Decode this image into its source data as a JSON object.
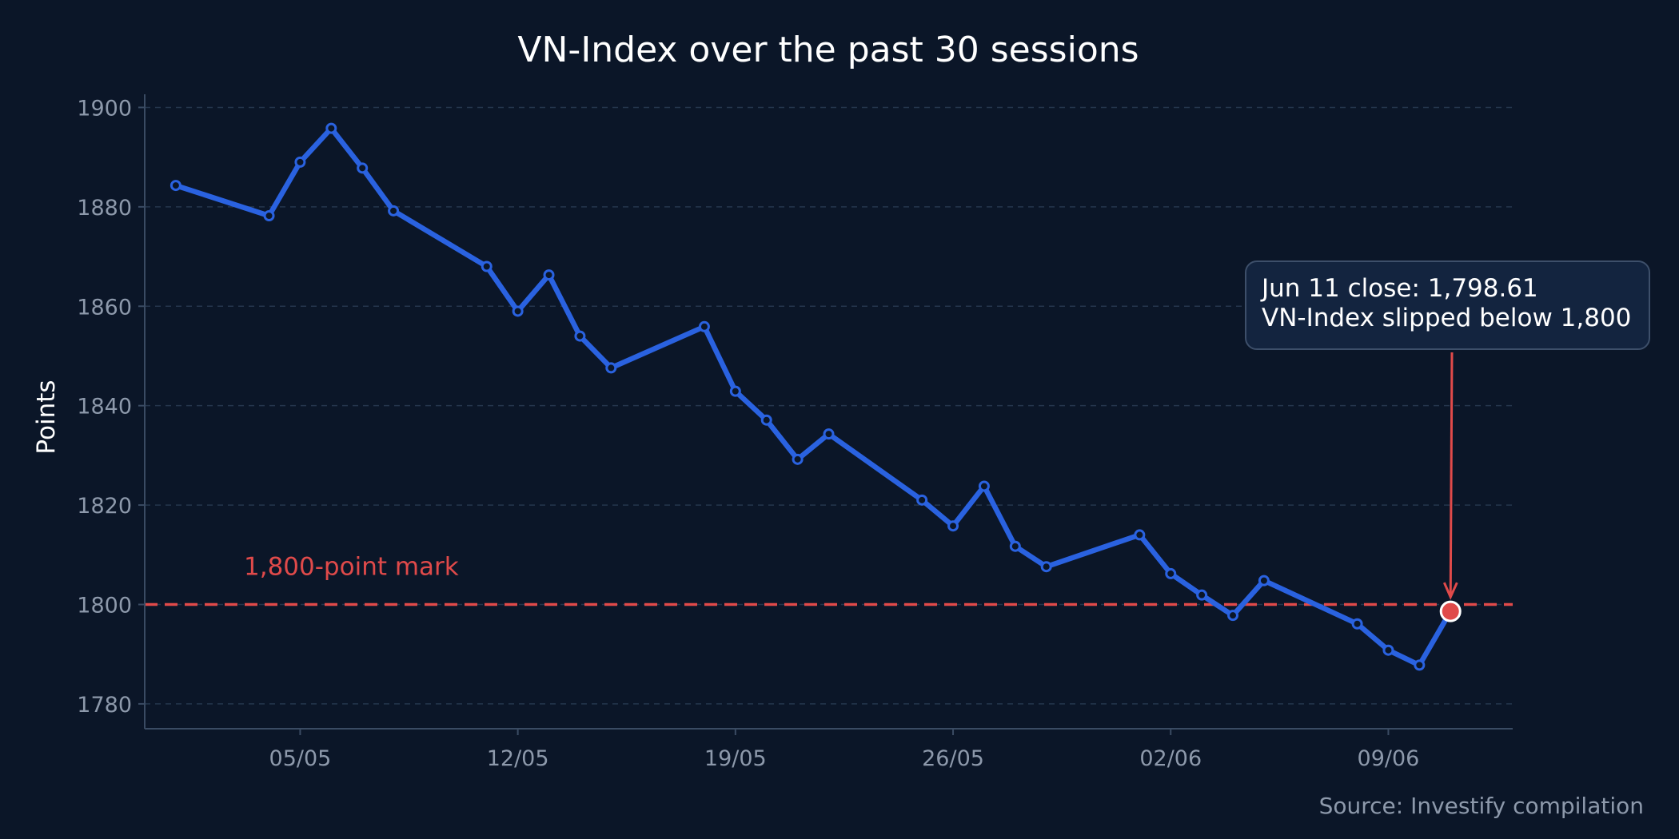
{
  "chart_data": {
    "type": "line",
    "title": "VN-Index over the past 30 sessions",
    "xlabel": "",
    "ylabel": "Points",
    "ylim": [
      1775,
      1902
    ],
    "xlim": [
      "2025-04-30",
      "2025-06-13"
    ],
    "yticks": [
      1780,
      1800,
      1820,
      1840,
      1860,
      1880,
      1900
    ],
    "xticks": [
      {
        "date": "2025-05-05",
        "label": "05/05"
      },
      {
        "date": "2025-05-12",
        "label": "12/05"
      },
      {
        "date": "2025-05-19",
        "label": "19/05"
      },
      {
        "date": "2025-05-26",
        "label": "26/05"
      },
      {
        "date": "2025-06-02",
        "label": "02/06"
      },
      {
        "date": "2025-06-09",
        "label": "09/06"
      }
    ],
    "grid": "horizontal dashed",
    "series": [
      {
        "color": "#2a62e0",
        "points": [
          {
            "x": "2025-05-01",
            "y": 1884.3
          },
          {
            "x": "2025-05-04",
            "y": 1878.2
          },
          {
            "x": "2025-05-05",
            "y": 1889.0
          },
          {
            "x": "2025-05-06",
            "y": 1895.8
          },
          {
            "x": "2025-05-07",
            "y": 1887.8
          },
          {
            "x": "2025-05-08",
            "y": 1879.2
          },
          {
            "x": "2025-05-11",
            "y": 1868.0
          },
          {
            "x": "2025-05-12",
            "y": 1859.0
          },
          {
            "x": "2025-05-13",
            "y": 1866.3
          },
          {
            "x": "2025-05-14",
            "y": 1854.0
          },
          {
            "x": "2025-05-15",
            "y": 1847.6
          },
          {
            "x": "2025-05-18",
            "y": 1855.9
          },
          {
            "x": "2025-05-19",
            "y": 1842.9
          },
          {
            "x": "2025-05-20",
            "y": 1837.1
          },
          {
            "x": "2025-05-21",
            "y": 1829.2
          },
          {
            "x": "2025-05-22",
            "y": 1834.3
          },
          {
            "x": "2025-05-25",
            "y": 1821.0
          },
          {
            "x": "2025-05-26",
            "y": 1815.8
          },
          {
            "x": "2025-05-27",
            "y": 1823.8
          },
          {
            "x": "2025-05-28",
            "y": 1811.7
          },
          {
            "x": "2025-05-29",
            "y": 1807.6
          },
          {
            "x": "2025-06-01",
            "y": 1814.0
          },
          {
            "x": "2025-06-02",
            "y": 1806.2
          },
          {
            "x": "2025-06-03",
            "y": 1801.9
          },
          {
            "x": "2025-06-04",
            "y": 1797.8
          },
          {
            "x": "2025-06-05",
            "y": 1804.8
          },
          {
            "x": "2025-06-08",
            "y": 1796.1
          },
          {
            "x": "2025-06-09",
            "y": 1790.8
          },
          {
            "x": "2025-06-10",
            "y": 1787.8
          },
          {
            "x": "2025-06-11",
            "y": 1798.61
          }
        ]
      }
    ],
    "reference_line": {
      "y": 1800,
      "color": "#e04a4a",
      "label": "1,800-point mark"
    },
    "annotation": {
      "x": "2025-06-11",
      "y": 1798.61,
      "lines": [
        "Jun 11 close: 1,798.61",
        "VN-Index slipped below 1,800"
      ]
    },
    "source": "Source: Investify compilation"
  }
}
